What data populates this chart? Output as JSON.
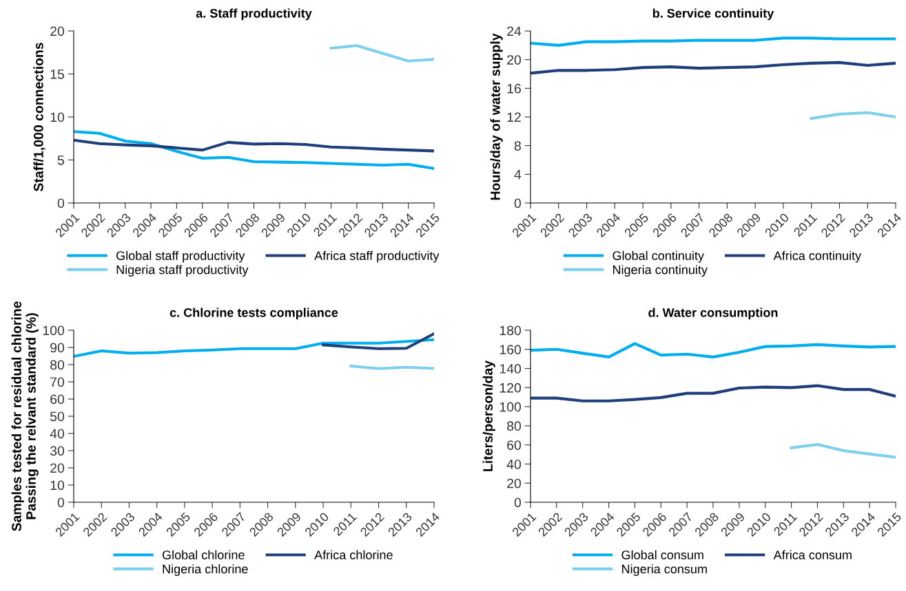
{
  "chart_data": [
    {
      "type": "line",
      "title": "a. Staff productivity",
      "ylabel": "Staff/1,000 connections",
      "categories": [
        "2001",
        "2002",
        "2003",
        "2004",
        "2005",
        "2006",
        "2007",
        "2008",
        "2009",
        "2010",
        "2011",
        "2012",
        "2013",
        "2014",
        "2015"
      ],
      "ylim": [
        0,
        20
      ],
      "yticks": [
        0,
        5,
        10,
        15,
        20
      ],
      "legend": "bottom",
      "grid": false,
      "series": [
        {
          "name": "Global staff productivity",
          "color": "#00aeef",
          "values": [
            8.3,
            8.1,
            7.2,
            6.9,
            6.0,
            5.2,
            5.3,
            4.8,
            4.75,
            4.7,
            4.6,
            4.5,
            4.4,
            4.5,
            4.0
          ]
        },
        {
          "name": "Africa staff productivity",
          "color": "#1f3f7a",
          "values": [
            7.3,
            6.9,
            6.75,
            6.65,
            6.4,
            6.15,
            7.05,
            6.85,
            6.9,
            6.8,
            6.5,
            6.4,
            6.25,
            6.15,
            6.05
          ]
        },
        {
          "name": "Nigeria staff productivity",
          "color": "#7fcfee",
          "values": [
            null,
            null,
            null,
            null,
            null,
            null,
            null,
            null,
            null,
            null,
            18.0,
            18.3,
            17.4,
            16.5,
            16.7
          ]
        }
      ]
    },
    {
      "type": "line",
      "title": "b. Service continuity",
      "ylabel": "Hours/day of water supply",
      "categories": [
        "2001",
        "2002",
        "2003",
        "2004",
        "2005",
        "2006",
        "2007",
        "2008",
        "2009",
        "2010",
        "2011",
        "2012",
        "2013",
        "2014"
      ],
      "ylim": [
        0,
        24
      ],
      "yticks": [
        0,
        4,
        8,
        12,
        16,
        20,
        24
      ],
      "legend": "bottom",
      "grid": false,
      "series": [
        {
          "name": "Global continuity",
          "color": "#00aeef",
          "values": [
            22.3,
            22.0,
            22.5,
            22.5,
            22.6,
            22.6,
            22.7,
            22.7,
            22.7,
            23.0,
            23.0,
            22.9,
            22.9,
            22.9
          ]
        },
        {
          "name": "Africa continuity",
          "color": "#1f3f7a",
          "values": [
            18.1,
            18.5,
            18.5,
            18.6,
            18.9,
            19.0,
            18.8,
            18.9,
            19.0,
            19.3,
            19.5,
            19.6,
            19.2,
            19.5
          ]
        },
        {
          "name": "Nigeria continuity",
          "color": "#7fcfee",
          "values": [
            null,
            null,
            null,
            null,
            null,
            null,
            null,
            null,
            null,
            null,
            11.8,
            12.4,
            12.6,
            12.0
          ]
        }
      ]
    },
    {
      "type": "line",
      "title": "c. Chlorine tests compliance",
      "ylabel": "Samples tested for residual chlorine\nPassing the relvant standard (%)",
      "categories": [
        "2001",
        "2002",
        "2003",
        "2004",
        "2005",
        "2006",
        "2007",
        "2008",
        "2009",
        "2010",
        "2011",
        "2012",
        "2013",
        "2014"
      ],
      "ylim": [
        0,
        100
      ],
      "yticks": [
        0,
        10,
        20,
        30,
        40,
        50,
        60,
        70,
        80,
        90,
        100
      ],
      "legend": "bottom",
      "grid": false,
      "series": [
        {
          "name": "Global chlorine",
          "color": "#00aeef",
          "values": [
            84.8,
            88,
            86.7,
            87,
            88,
            88.5,
            89.3,
            89.3,
            89.3,
            92.5,
            92.5,
            92.5,
            93.5,
            94.5
          ]
        },
        {
          "name": "Africa chlorine",
          "color": "#1f3f7a",
          "values": [
            null,
            null,
            null,
            null,
            null,
            null,
            null,
            null,
            null,
            91.5,
            90.3,
            89.3,
            89.5,
            98
          ]
        },
        {
          "name": "Nigeria chlorine",
          "color": "#7fcfee",
          "values": [
            null,
            null,
            null,
            null,
            null,
            null,
            null,
            null,
            null,
            null,
            79.2,
            77.7,
            78.5,
            77.8
          ]
        }
      ]
    },
    {
      "type": "line",
      "title": "d. Water consumption",
      "ylabel": "Liters/person/day",
      "categories": [
        "2001",
        "2002",
        "2003",
        "2004",
        "2005",
        "2006",
        "2007",
        "2008",
        "2009",
        "2010",
        "2011",
        "2012",
        "2013",
        "2014",
        "2015"
      ],
      "ylim": [
        0,
        180
      ],
      "yticks": [
        0,
        20,
        40,
        60,
        80,
        100,
        120,
        140,
        160,
        180
      ],
      "legend": "bottom",
      "grid": false,
      "series": [
        {
          "name": "Global consum",
          "color": "#00aeef",
          "values": [
            159,
            160,
            156,
            152,
            166,
            154,
            155,
            152,
            157,
            163,
            163.5,
            165,
            163.5,
            162.5,
            163
          ]
        },
        {
          "name": "Africa consum",
          "color": "#1f3f7a",
          "values": [
            109,
            109,
            106,
            106,
            107.5,
            109.5,
            114,
            114,
            119.5,
            120.5,
            120,
            122,
            118,
            118,
            111
          ]
        },
        {
          "name": "Nigeria consum",
          "color": "#7fcfee",
          "values": [
            null,
            null,
            null,
            null,
            null,
            null,
            null,
            null,
            null,
            null,
            57,
            60.5,
            54,
            50.5,
            47
          ]
        }
      ]
    }
  ]
}
